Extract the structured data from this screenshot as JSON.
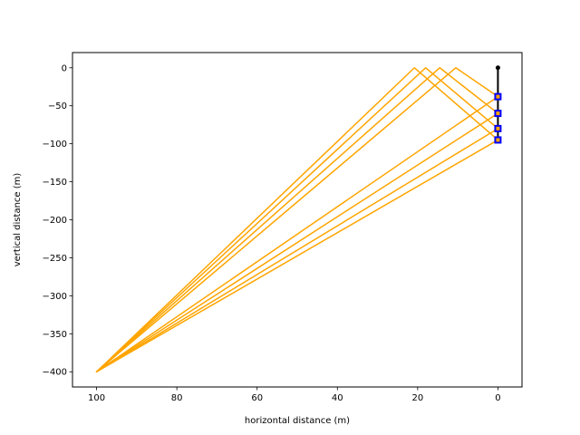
{
  "chart_data": {
    "type": "line",
    "xlabel": "horizontal distance (m)",
    "ylabel": "vertical distance (m)",
    "xlim": [
      106,
      -6
    ],
    "ylim": [
      -420,
      20
    ],
    "x_inverted": true,
    "xticks": [
      100,
      80,
      60,
      40,
      20,
      0
    ],
    "yticks": [
      0,
      -50,
      -100,
      -150,
      -200,
      -250,
      -300,
      -350,
      -400
    ],
    "grid": false,
    "colors": {
      "paths": "#ffa500",
      "line": "#000000",
      "markers": "#0000ff",
      "marker_fill": "#ffa500"
    },
    "series": [
      {
        "points": [
          [
            0,
            -38
          ],
          [
            10.5,
            0
          ],
          [
            100,
            -400
          ],
          [
            0,
            -38
          ]
        ]
      },
      {
        "points": [
          [
            0,
            -60
          ],
          [
            14.5,
            0
          ],
          [
            100,
            -400
          ],
          [
            0,
            -60
          ]
        ]
      },
      {
        "points": [
          [
            0,
            -80
          ],
          [
            18.0,
            0
          ],
          [
            100,
            -400
          ],
          [
            0,
            -80
          ]
        ]
      },
      {
        "points": [
          [
            0,
            -95
          ],
          [
            20.8,
            0
          ],
          [
            100,
            -400
          ],
          [
            0,
            -95
          ]
        ]
      }
    ],
    "vertical_line": {
      "x": 0,
      "y_top": 0,
      "y_bottom": -95
    },
    "top_point": {
      "x": 0,
      "y": 0
    },
    "markers": [
      {
        "x": 0,
        "y": -38
      },
      {
        "x": 0,
        "y": -60
      },
      {
        "x": 0,
        "y": -80
      },
      {
        "x": 0,
        "y": -95
      }
    ]
  }
}
